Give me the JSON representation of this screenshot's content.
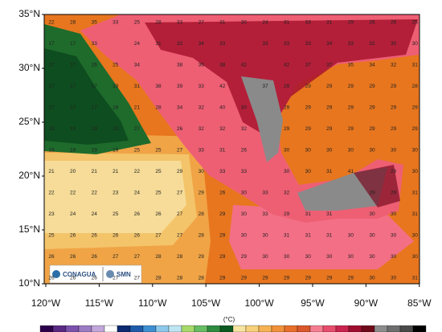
{
  "map": {
    "unit_label": "(°C)",
    "lat_labels": [
      "35°N",
      "30°N",
      "25°N",
      "20°N",
      "15°N",
      "10°N"
    ],
    "lon_labels": [
      "120°W",
      "115°W",
      "110°W",
      "105°W",
      "100°W",
      "95°W",
      "90°W",
      "85°W"
    ],
    "logos": [
      "CONAGUA",
      "SMN"
    ],
    "grid": {
      "rows": [
        [
          22,
          28,
          35,
          33,
          25,
          28,
          33,
          27,
          31,
          30,
          24,
          31,
          33,
          31,
          29,
          26,
          26,
          25
        ],
        [
          17,
          17,
          33,
          null,
          24,
          31,
          32,
          34,
          33,
          null,
          33,
          33,
          33,
          34,
          33,
          32,
          30,
          30
        ],
        [
          17,
          17,
          26,
          25,
          34,
          null,
          38,
          36,
          38,
          42,
          null,
          42,
          37,
          37,
          35,
          34,
          32,
          31
        ],
        [
          17,
          17,
          17,
          19,
          31,
          38,
          39,
          33,
          42,
          null,
          37,
          29,
          29,
          29,
          29,
          29,
          29,
          28
        ],
        [
          17,
          17,
          17,
          18,
          21,
          28,
          34,
          32,
          40,
          30,
          null,
          29,
          29,
          29,
          29,
          29,
          29,
          29
        ],
        [
          18,
          19,
          19,
          20,
          27,
          null,
          26,
          32,
          32,
          32,
          null,
          29,
          29,
          29,
          29,
          29,
          29,
          29
        ],
        [
          19,
          19,
          19,
          19,
          25,
          25,
          27,
          33,
          31,
          26,
          null,
          30,
          30,
          30,
          30,
          30,
          30,
          30
        ],
        [
          21,
          20,
          21,
          21,
          22,
          25,
          29,
          30,
          33,
          33,
          null,
          30,
          30,
          31,
          41,
          null,
          29,
          30
        ],
        [
          22,
          22,
          22,
          23,
          24,
          25,
          27,
          29,
          26,
          30,
          33,
          32,
          null,
          null,
          null,
          29,
          29,
          31
        ],
        [
          23,
          24,
          24,
          25,
          26,
          26,
          27,
          28,
          29,
          30,
          33,
          29,
          31,
          31,
          null,
          30,
          30,
          31
        ],
        [
          25,
          26,
          26,
          26,
          26,
          27,
          27,
          28,
          29,
          30,
          30,
          31,
          31,
          31,
          30,
          30,
          30,
          30
        ],
        [
          26,
          26,
          26,
          27,
          27,
          28,
          28,
          29,
          29,
          29,
          30,
          30,
          30,
          30,
          30,
          30,
          30,
          30
        ],
        [
          26,
          26,
          26,
          27,
          27,
          28,
          28,
          28,
          29,
          29,
          29,
          29,
          29,
          29,
          29,
          30,
          30,
          31
        ]
      ]
    }
  }
}
